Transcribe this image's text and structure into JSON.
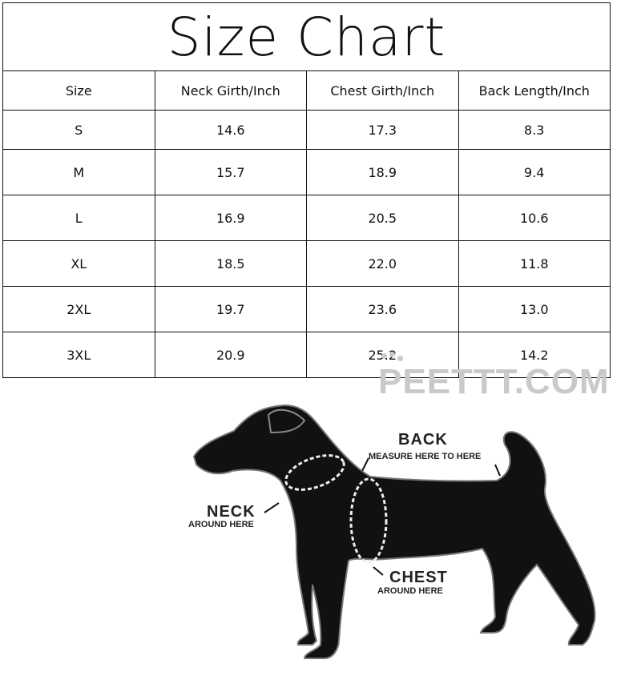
{
  "title": "Size Chart",
  "columns": [
    "Size",
    "Neck Girth/Inch",
    "Chest Girth/Inch",
    "Back Length/Inch"
  ],
  "rows": [
    [
      "S",
      "14.6",
      "17.3",
      "8.3"
    ],
    [
      "M",
      "15.7",
      "18.9",
      "9.4"
    ],
    [
      "L",
      "16.9",
      "20.5",
      "10.6"
    ],
    [
      "XL",
      "18.5",
      "22.0",
      "11.8"
    ],
    [
      "2XL",
      "19.7",
      "23.6",
      "13.0"
    ],
    [
      "3XL",
      "20.9",
      "25.2",
      "14.2"
    ]
  ],
  "watermark": "PEETTT.COM",
  "diagram": {
    "back_title": "BACK",
    "back_sub": "MEASURE HERE TO HERE",
    "neck_title": "NECK",
    "neck_sub": "AROUND HERE",
    "chest_title": "CHEST",
    "chest_sub": "AROUND HERE"
  }
}
